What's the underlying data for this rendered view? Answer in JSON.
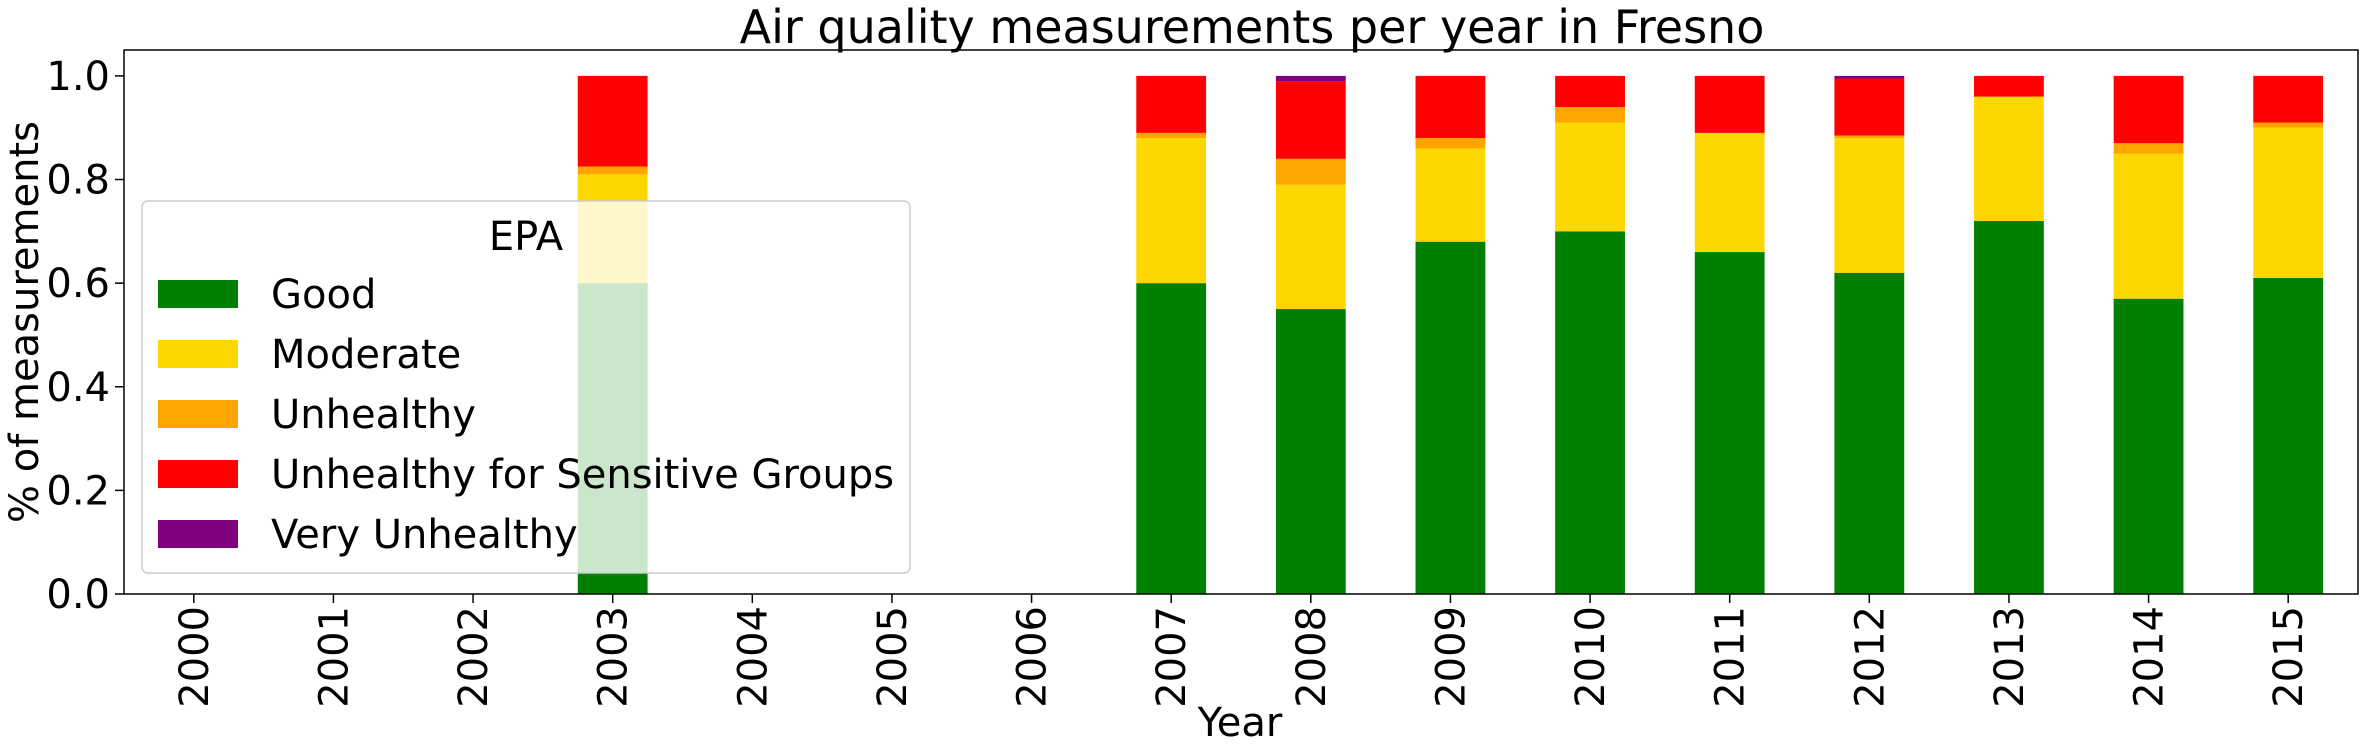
{
  "chart_data": {
    "type": "bar",
    "stacked": true,
    "title": "Air quality measurements per year in Fresno",
    "xlabel": "Year",
    "ylabel": "% of measurements",
    "ylim": [
      0,
      1.05
    ],
    "yticks": [
      "0.0",
      "0.2",
      "0.4",
      "0.6",
      "0.8",
      "1.0"
    ],
    "categories": [
      "2000",
      "2001",
      "2002",
      "2003",
      "2004",
      "2005",
      "2006",
      "2007",
      "2008",
      "2009",
      "2010",
      "2011",
      "2012",
      "2013",
      "2014",
      "2015"
    ],
    "series": [
      {
        "name": "Good",
        "color": "#008000",
        "values": [
          0,
          0,
          0,
          0.6,
          0,
          0,
          0,
          0.6,
          0.55,
          0.68,
          0.7,
          0.66,
          0.62,
          0.72,
          0.57,
          0.61
        ]
      },
      {
        "name": "Moderate",
        "color": "#FFD700",
        "values": [
          0,
          0,
          0,
          0.21,
          0,
          0,
          0,
          0.28,
          0.24,
          0.18,
          0.21,
          0.23,
          0.26,
          0.24,
          0.28,
          0.29
        ]
      },
      {
        "name": "Unhealthy",
        "color": "#FFA500",
        "values": [
          0,
          0,
          0,
          0.015,
          0,
          0,
          0,
          0.01,
          0.05,
          0.02,
          0.03,
          0.0,
          0.005,
          0.0,
          0.02,
          0.01
        ]
      },
      {
        "name": "Unhealthy for Sensitive Groups",
        "color": "#FF0000",
        "values": [
          0,
          0,
          0,
          0.175,
          0,
          0,
          0,
          0.11,
          0.15,
          0.12,
          0.06,
          0.11,
          0.11,
          0.04,
          0.13,
          0.09
        ]
      },
      {
        "name": "Very Unhealthy",
        "color": "#800080",
        "values": [
          0,
          0,
          0,
          0,
          0,
          0,
          0,
          0,
          0.01,
          0,
          0,
          0,
          0.005,
          0,
          0,
          0
        ]
      }
    ],
    "legend": {
      "title": "EPA",
      "position": "left"
    },
    "grid": false
  }
}
